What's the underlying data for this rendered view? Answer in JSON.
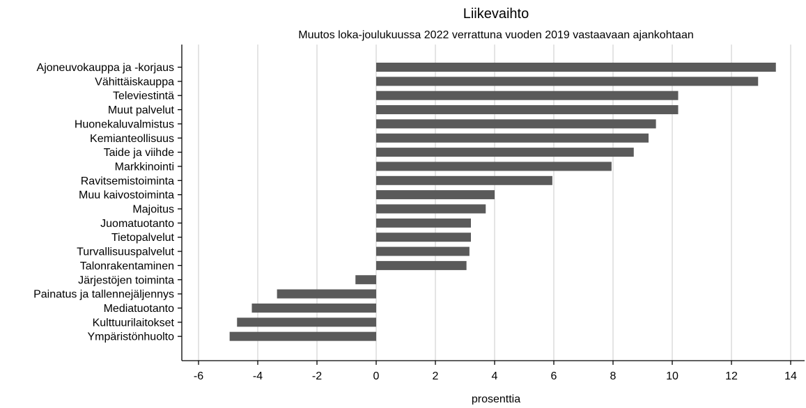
{
  "chart_data": {
    "type": "bar",
    "orientation": "horizontal",
    "title": "Liikevaihto",
    "subtitle": "Muutos loka-joulukuussa 2022 verrattuna vuoden 2019 vastaavaan ajankohtaan",
    "xlabel": "prosenttia",
    "ylabel": "",
    "xlim": [
      -6,
      14
    ],
    "xticks": [
      -6,
      -4,
      -2,
      0,
      2,
      4,
      6,
      8,
      10,
      12,
      14
    ],
    "grid": true,
    "bar_color": "#5a5a5a",
    "categories": [
      "Ajoneuvokauppa ja -korjaus",
      "Vähittäiskauppa",
      "Televiestintä",
      "Muut palvelut",
      "Huonekaluvalmistus",
      "Kemianteollisuus",
      "Taide ja viihde",
      "Markkinointi",
      "Ravitsemistoiminta",
      "Muu kaivostoiminta",
      "Majoitus",
      "Juomatuotanto",
      "Tietopalvelut",
      "Turvallisuuspalvelut",
      "Talonrakentaminen",
      "Järjestöjen toiminta",
      "Painatus ja tallennejäljennys",
      "Mediatuotanto",
      "Kulttuurilaitokset",
      "Ympäristönhuolto"
    ],
    "values": [
      13.5,
      12.9,
      10.2,
      10.2,
      9.45,
      9.2,
      8.7,
      7.95,
      5.95,
      4.0,
      3.7,
      3.2,
      3.2,
      3.15,
      3.05,
      -0.7,
      -3.35,
      -4.2,
      -4.7,
      -4.95
    ]
  }
}
